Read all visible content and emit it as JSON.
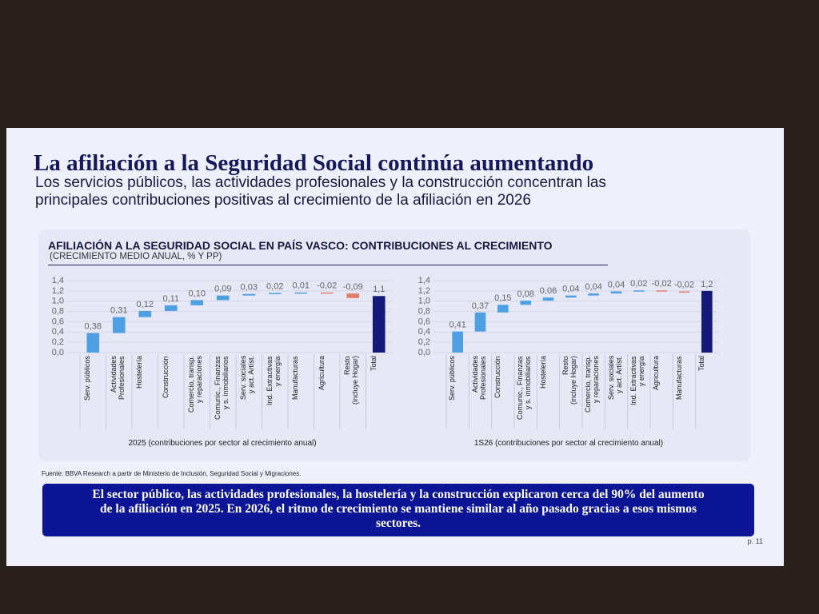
{
  "slide": {
    "title": "La afiliación a la Seguridad Social continúa aumentando",
    "subtitle": "Los servicios públicos, las actividades profesionales y la construcción concentran las principales contribuciones positivas al crecimiento de la afiliación en 2026",
    "panel_title": "AFILIACIÓN A LA SEGURIDAD SOCIAL EN PAÍS VASCO: CONTRIBUCIONES AL CRECIMIENTO",
    "panel_subtitle": "(CRECIMIENTO MEDIO ANUAL, % Y PP)",
    "source": "Fuente: BBVA Research a partir de Ministerio de Inclusión, Seguridad Social y Migraciones.",
    "callout": "El sector público, las actividades profesionales, la hostelería y la construcción explicaron cerca del 90% del aumento de la afiliación en 2025. En 2026, el ritmo de crecimiento se mantiene similar al año pasado gracias a esos mismos sectores.",
    "page": "p. 11"
  },
  "chart_data": [
    {
      "type": "waterfall",
      "categories": [
        "Serv. públicos",
        "Actividades\nProfesionales",
        "Hostelería",
        "Construcción",
        "Comercio, transp.\ny reparaciones",
        "Comunic., Finanzas\ny s. inmobiliarios",
        "Serv. sociales\ny act. Artíst.",
        "Ind. Extractivas\ny energía",
        "Manufacturas",
        "Agricultura",
        "Resto\n(incluye Hogar)"
      ],
      "values": [
        0.38,
        0.31,
        0.12,
        0.11,
        0.1,
        0.09,
        0.03,
        0.02,
        0.01,
        -0.02,
        -0.09
      ],
      "value_labels": [
        "0,38",
        "0,31",
        "0,12",
        "0,11",
        "0,10",
        "0,09",
        "0,03",
        "0,02",
        "0,01",
        "-0,02",
        "-0,09"
      ],
      "total_label": "Total",
      "total": 1.1,
      "total_value_label": "1,1",
      "color_increase": "#4f9fe3",
      "color_decrease": "#e27f6c",
      "color_total": "#14197a",
      "ylim": [
        0,
        1.4
      ],
      "yticks": [
        {
          "value": 0,
          "label": "0,0"
        },
        {
          "value": 0.2,
          "label": "0,2"
        },
        {
          "value": 0.4,
          "label": "0,4"
        },
        {
          "value": 0.6,
          "label": "0,6"
        },
        {
          "value": 0.8,
          "label": "0,8"
        },
        {
          "value": 1.0,
          "label": "1,0"
        },
        {
          "value": 1.2,
          "label": "1,2"
        },
        {
          "value": 1.4,
          "label": "1,4"
        }
      ],
      "grid": true,
      "xlabel": "2025 (contribuciones por sector al crecimiento anual)"
    },
    {
      "type": "waterfall",
      "categories": [
        "Serv. públicos",
        "Actividades\nProfesionales",
        "Construcción",
        "Comunic., Finanzas\ny s. inmobiliarios",
        "Hostelería",
        "Resto\n(incluye Hogar)",
        "Comercio, transp.\ny reparaciones",
        "Serv. sociales\ny act. Artíst.",
        "Ind. Extractivas\ny energía",
        "Agricultura",
        "Manufacturas"
      ],
      "values": [
        0.41,
        0.37,
        0.15,
        0.08,
        0.06,
        0.04,
        0.04,
        0.04,
        0.02,
        -0.02,
        -0.02
      ],
      "value_labels": [
        "0,41",
        "0,37",
        "0,15",
        "0,08",
        "0,06",
        "0,04",
        "0,04",
        "0,04",
        "0,02",
        "-0,02",
        "-0,02"
      ],
      "total_label": "Total",
      "total": 1.2,
      "total_value_label": "1,2",
      "color_increase": "#4f9fe3",
      "color_decrease": "#e27f6c",
      "color_total": "#14197a",
      "ylim": [
        0,
        1.4
      ],
      "yticks": [
        {
          "value": 0,
          "label": "0,0"
        },
        {
          "value": 0.2,
          "label": "0,2"
        },
        {
          "value": 0.4,
          "label": "0,4"
        },
        {
          "value": 0.6,
          "label": "0,6"
        },
        {
          "value": 0.8,
          "label": "0,8"
        },
        {
          "value": 1.0,
          "label": "1,0"
        },
        {
          "value": 1.2,
          "label": "1,2"
        },
        {
          "value": 1.4,
          "label": "1,4"
        }
      ],
      "grid": true,
      "xlabel": "1S26 (contribuciones por sector al crecimiento anual)"
    }
  ]
}
